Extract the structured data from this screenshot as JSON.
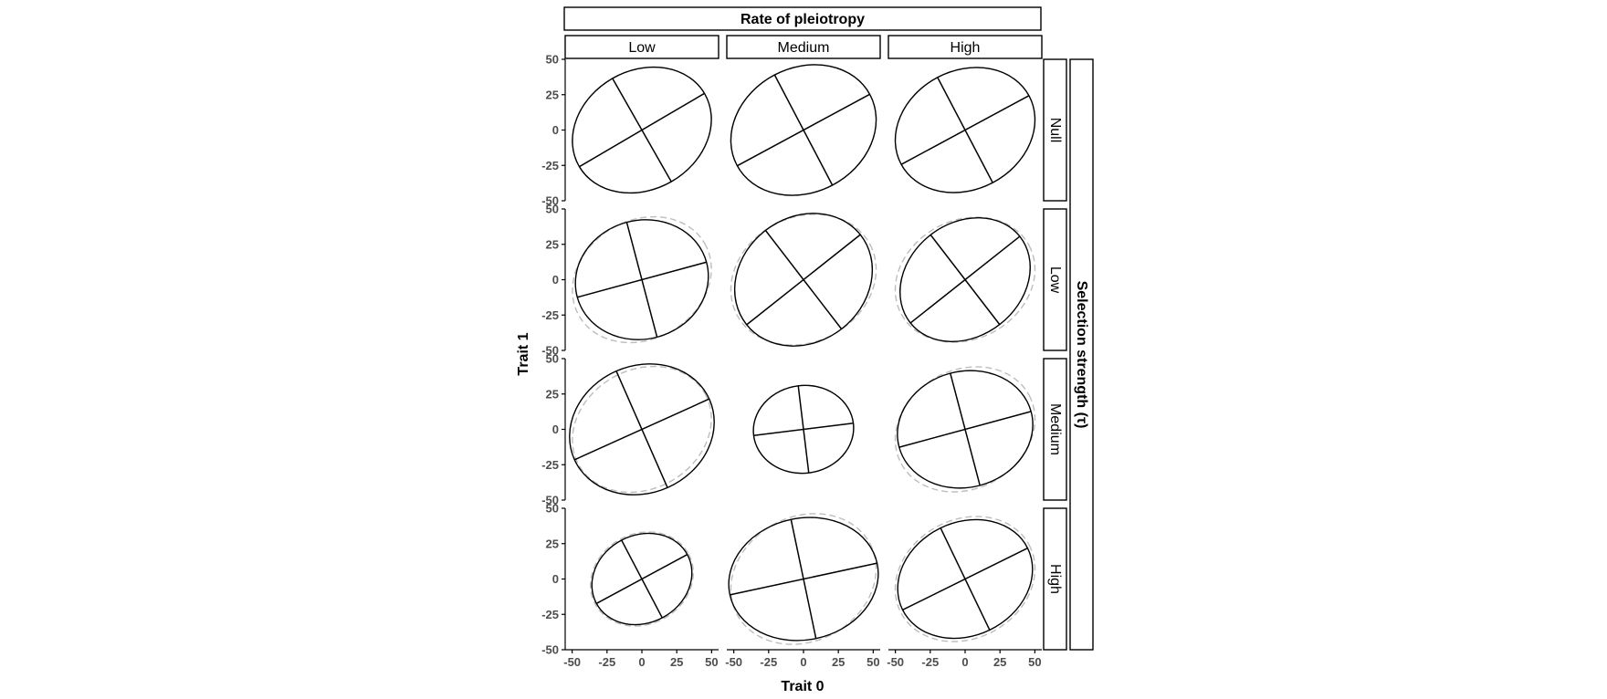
{
  "chart_data": {
    "type": "ellipse-grid",
    "col_facet_title": "Rate of pleiotropy",
    "col_facets": [
      "Low",
      "Medium",
      "High"
    ],
    "row_facet_title": "Selection strength (τ)",
    "row_facets": [
      "Null",
      "Low",
      "Medium",
      "High"
    ],
    "xlabel": "Trait 0",
    "ylabel": "Trait 1",
    "xlim": [
      -55,
      55
    ],
    "ylim": [
      -50,
      50
    ],
    "x_ticks": [
      -50,
      -25,
      0,
      25,
      50
    ],
    "y_ticks": [
      -50,
      -25,
      0,
      25,
      50
    ],
    "x_tick_labels": [
      "-50",
      "-25",
      "0",
      "25",
      "50"
    ],
    "y_tick_labels": [
      "-50",
      "-25",
      "0",
      "25",
      "50"
    ],
    "reference_style": "dashed grey",
    "panels": [
      {
        "row": "Null",
        "col": "Low",
        "major": 52,
        "minor": 42,
        "angle": 30,
        "ref_major": 52,
        "ref_minor": 42,
        "ref_angle": 30
      },
      {
        "row": "Null",
        "col": "Medium",
        "major": 54,
        "minor": 44,
        "angle": 28,
        "ref_major": 54,
        "ref_minor": 44,
        "ref_angle": 28
      },
      {
        "row": "Null",
        "col": "High",
        "major": 52,
        "minor": 42,
        "angle": 28,
        "ref_major": 52,
        "ref_minor": 42,
        "ref_angle": 28
      },
      {
        "row": "Low",
        "col": "Low",
        "major": 48,
        "minor": 42,
        "angle": 15,
        "ref_major": 52,
        "ref_minor": 42,
        "ref_angle": 30
      },
      {
        "row": "Low",
        "col": "Medium",
        "major": 52,
        "minor": 44,
        "angle": 38,
        "ref_major": 54,
        "ref_minor": 44,
        "ref_angle": 28
      },
      {
        "row": "Low",
        "col": "High",
        "major": 50,
        "minor": 40,
        "angle": 38,
        "ref_major": 52,
        "ref_minor": 42,
        "ref_angle": 28
      },
      {
        "row": "Medium",
        "col": "Low",
        "major": 53,
        "minor": 45,
        "angle": 24,
        "ref_major": 52,
        "ref_minor": 42,
        "ref_angle": 30
      },
      {
        "row": "Medium",
        "col": "Medium",
        "major": 36,
        "minor": 31,
        "angle": 7,
        "ref_major": 36,
        "ref_minor": 31,
        "ref_angle": 7
      },
      {
        "row": "Medium",
        "col": "High",
        "major": 49,
        "minor": 41,
        "angle": 15,
        "ref_major": 52,
        "ref_minor": 42,
        "ref_angle": 28
      },
      {
        "row": "High",
        "col": "Low",
        "major": 37,
        "minor": 31,
        "angle": 28,
        "ref_major": 38,
        "ref_minor": 32,
        "ref_angle": 28
      },
      {
        "row": "High",
        "col": "Medium",
        "major": 54,
        "minor": 43,
        "angle": 12,
        "ref_major": 54,
        "ref_minor": 44,
        "ref_angle": 28
      },
      {
        "row": "High",
        "col": "High",
        "major": 50,
        "minor": 40,
        "angle": 26,
        "ref_major": 52,
        "ref_minor": 42,
        "ref_angle": 28
      }
    ]
  }
}
